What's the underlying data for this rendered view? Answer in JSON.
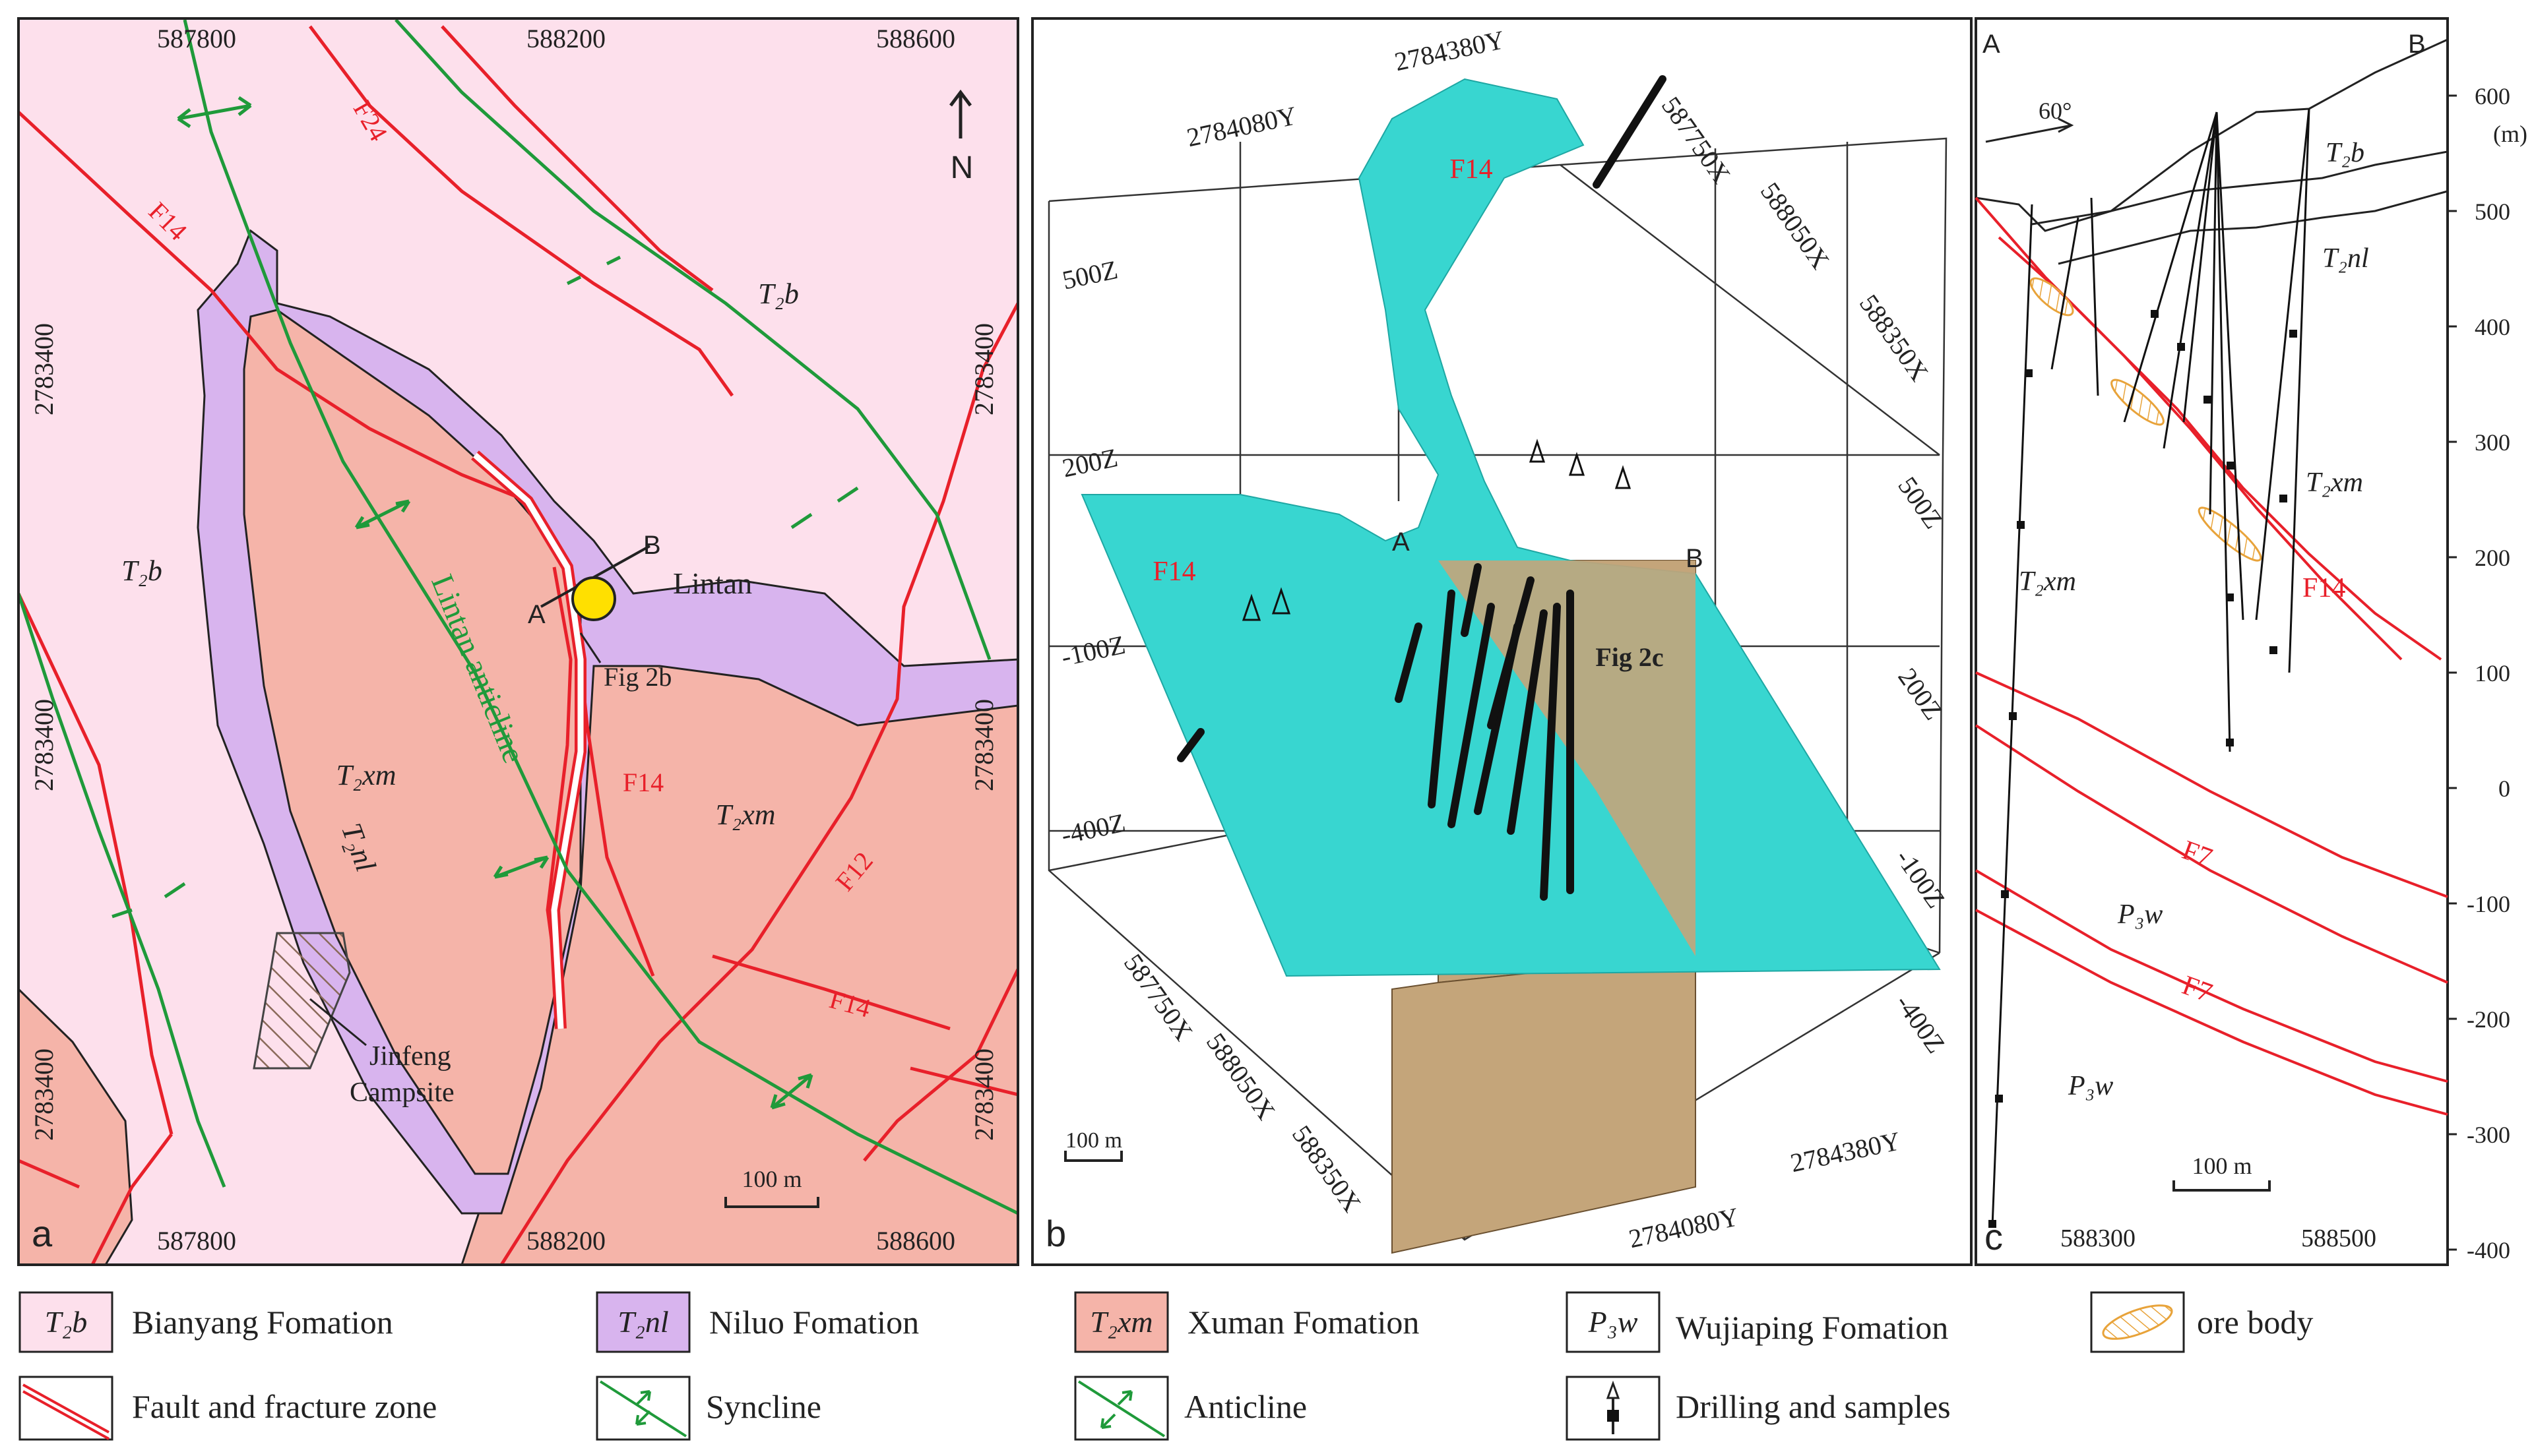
{
  "panel_a": {
    "letter": "a",
    "north": "N",
    "top_x": [
      "587800",
      "588200",
      "588600"
    ],
    "bottom_x": [
      "587800",
      "588200",
      "588600"
    ],
    "left_y": [
      "2783400",
      "2783400",
      "2783400"
    ],
    "right_y": [
      "2783400",
      "2783400",
      "2783400"
    ],
    "units": {
      "t2b_a": "T₂b",
      "t2b_b": "T₂b",
      "t2nl": "T₂nl",
      "t2xm_a": "T₂xm",
      "t2xm_b": "T₂xm"
    },
    "faults": {
      "f24": "F24",
      "f14_nw": "F14",
      "f14_mid": "F14",
      "f14_se": "F14",
      "f12": "F12"
    },
    "anticline": "Lintan anticline",
    "lintan": "Lintan",
    "section_a": "A",
    "section_b": "B",
    "fig2b": "Fig 2b",
    "campsite": "Jinfeng Campsite",
    "scale": "100 m"
  },
  "panel_b": {
    "letter": "b",
    "y_labels": [
      "2784080Y",
      "2784380Y"
    ],
    "x_labels_top": [
      "587750X",
      "588050X",
      "588350X"
    ],
    "x_labels_bottom": [
      "587750X",
      "588050X",
      "588350X"
    ],
    "y_labels_bottom": [
      "2784080Y",
      "2784380Y"
    ],
    "z_labels_left": [
      "500Z",
      "200Z",
      "-100Z",
      "-400Z"
    ],
    "z_labels_right": [
      "500Z",
      "200Z",
      "-100Z",
      "-400Z"
    ],
    "fault_top": "F14",
    "fault_left": "F14",
    "section_a": "A",
    "section_b": "B",
    "fig2c": "Fig 2c",
    "scale": "100 m"
  },
  "panel_c": {
    "letter": "c",
    "corner_a": "A",
    "corner_b": "B",
    "dip": "60°",
    "unit_label": "(m)",
    "elevations": [
      "600",
      "500",
      "400",
      "300",
      "200",
      "100",
      "0",
      "-100",
      "-200",
      "-300",
      "-400"
    ],
    "x_ticks": [
      "588300",
      "588500"
    ],
    "units": {
      "t2b": "T₂b",
      "t2nl": "T₂nl",
      "t2xm_r": "T₂xm",
      "t2xm_l": "T₂xm",
      "p3w_a": "P₃w",
      "p3w_b": "P₃w"
    },
    "faults": {
      "f14": "F14",
      "f7_a": "F7",
      "f7_b": "F7"
    },
    "scale": "100 m"
  },
  "legend": [
    {
      "symbol": "T₂b",
      "label": "Bianyang Fomation",
      "color": "#fde0ec"
    },
    {
      "symbol": "T₂nl",
      "label": "Niluo Fomation",
      "color": "#d8b4ee"
    },
    {
      "symbol": "T₂xm",
      "label": "Xuman Fomation",
      "color": "#f5b4a9"
    },
    {
      "symbol": "P₃w",
      "label": "Wujiaping Fomation",
      "color": "#ffffff"
    },
    {
      "symbol": "",
      "label": "ore body",
      "color": "#e8a33a"
    },
    {
      "symbol": "",
      "label": "Fault and fracture zone",
      "color": "#e8202a"
    },
    {
      "symbol": "",
      "label": "Syncline",
      "color": "#1f9a3a"
    },
    {
      "symbol": "",
      "label": "Anticline",
      "color": "#1f9a3a"
    },
    {
      "symbol": "",
      "label": "Drilling and samples",
      "color": "#000000"
    }
  ]
}
